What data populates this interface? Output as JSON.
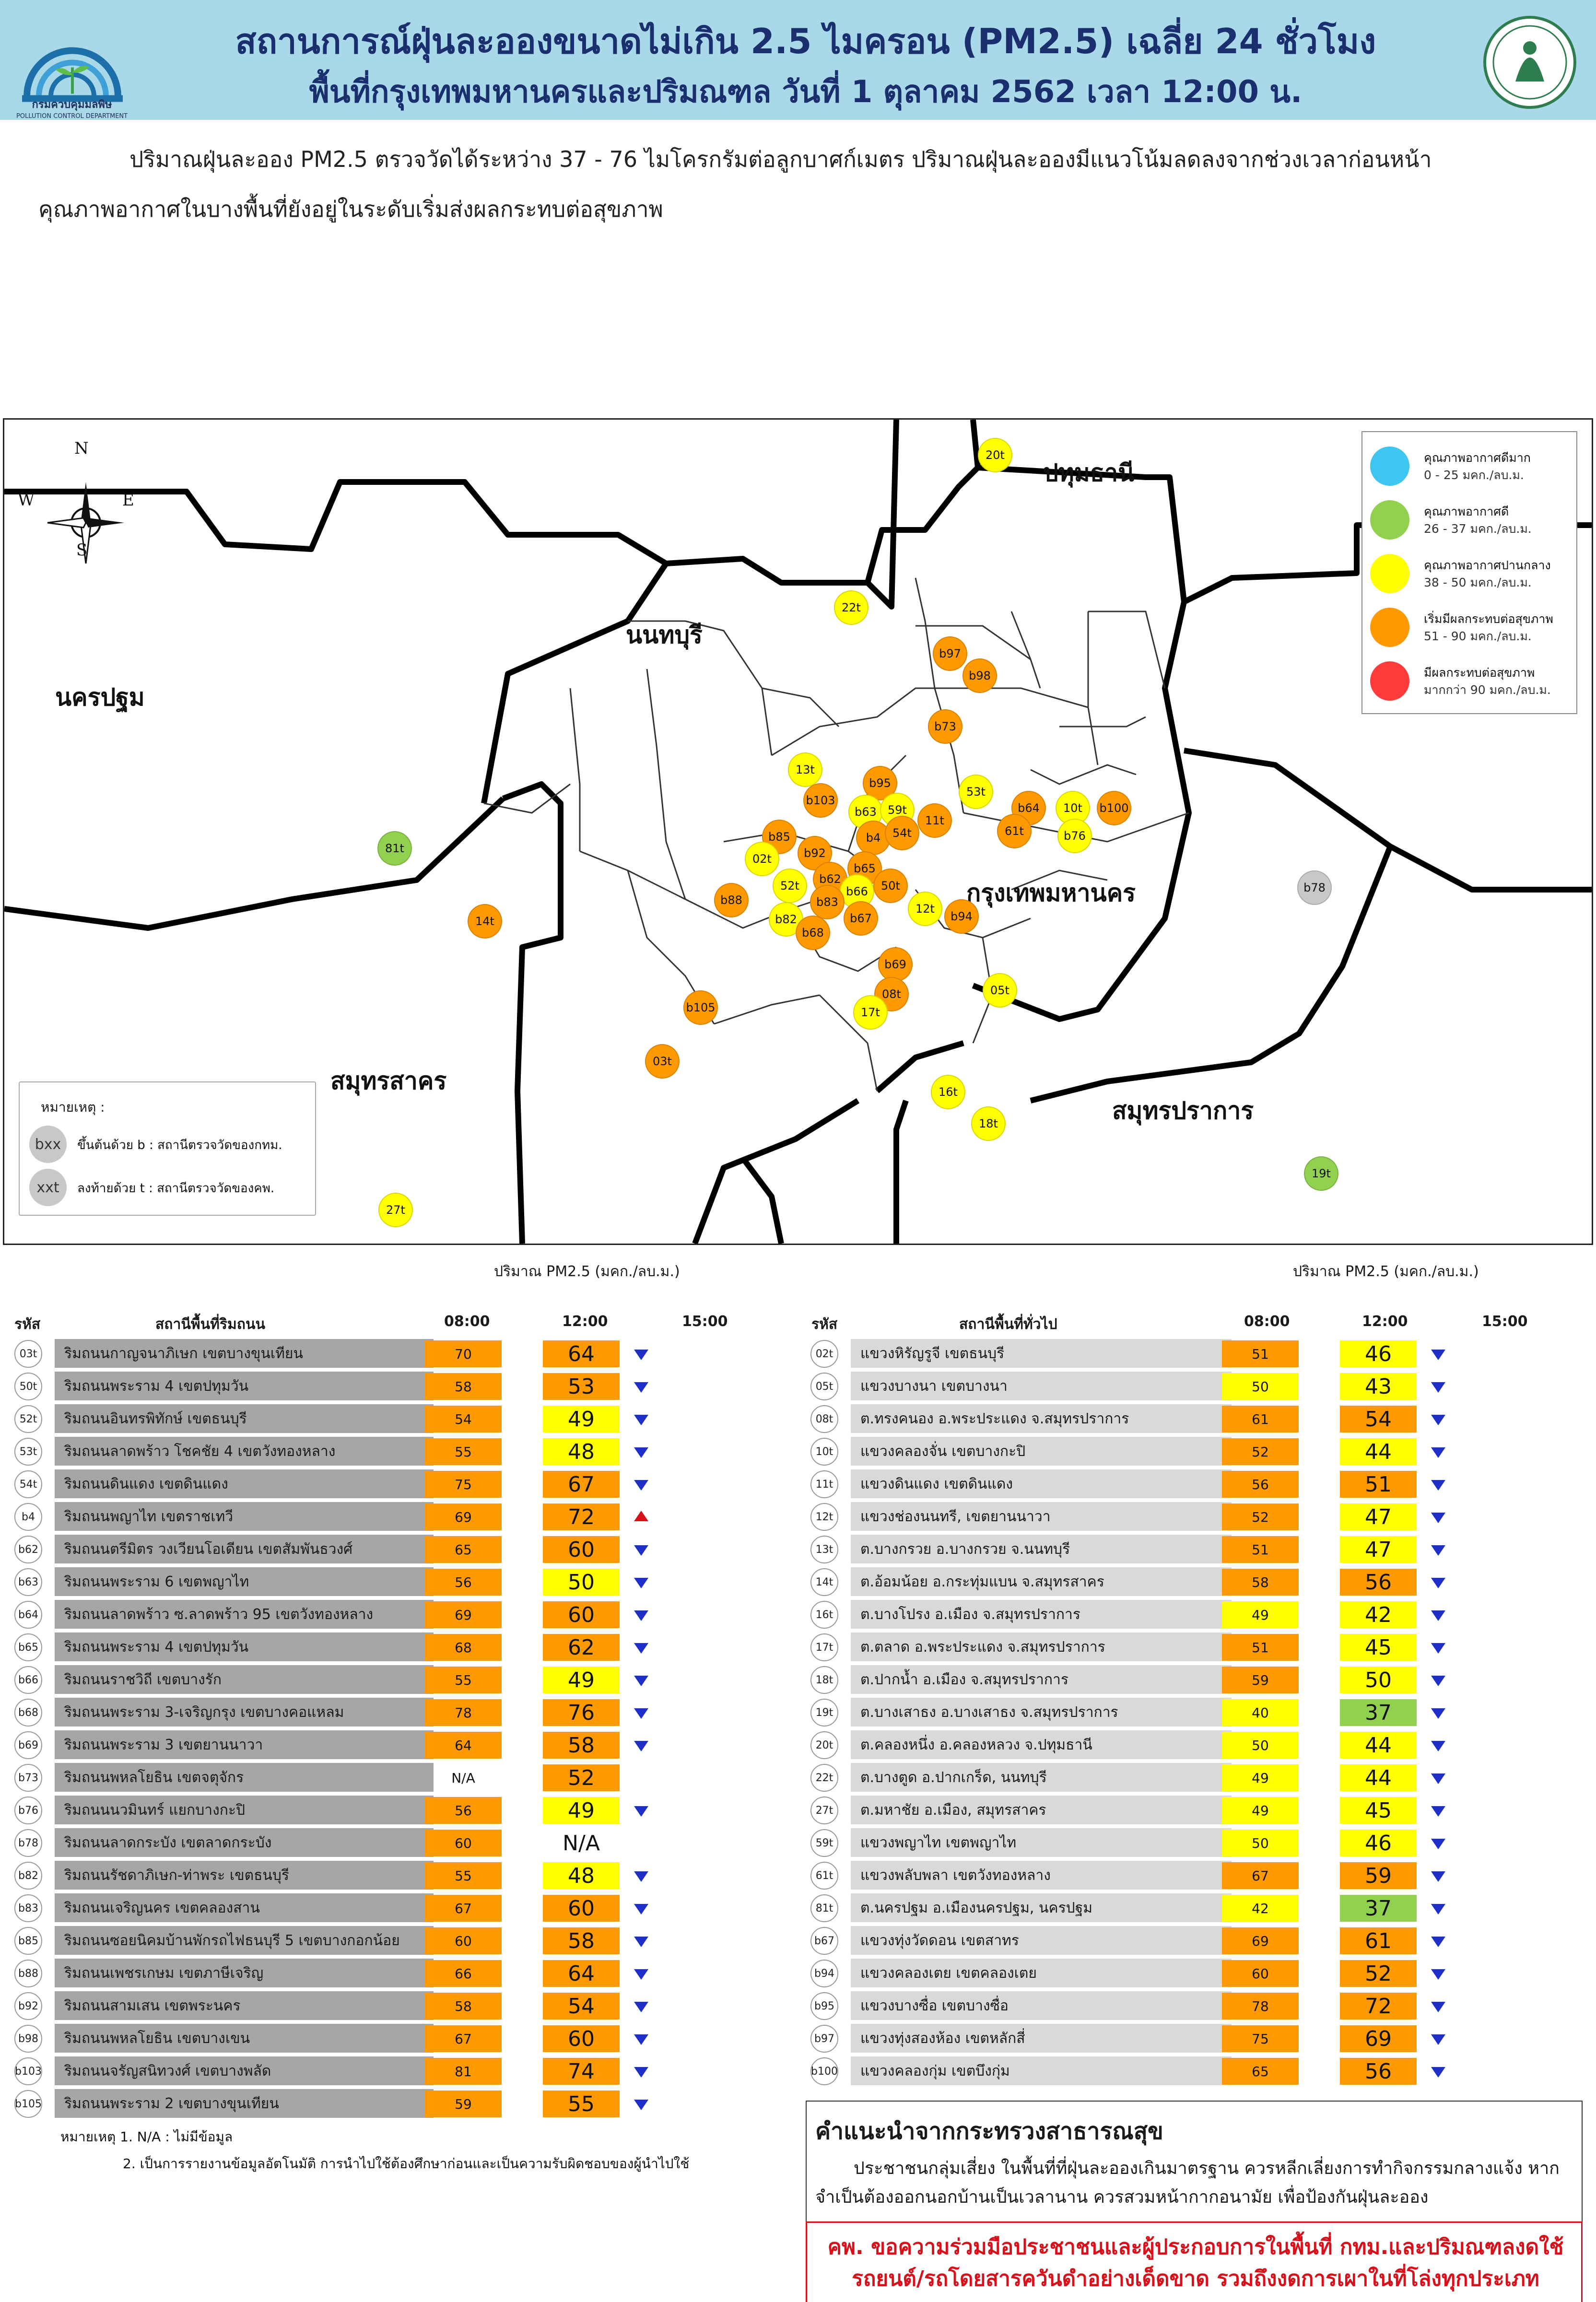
{
  "header": {
    "logo_text": "กรมควบคุมมลพิษ",
    "logo_subtext": "POLLUTION CONTROL DEPARTMENT",
    "title_line1": "สถานการณ์ฝุ่นละอองขนาดไม่เกิน 2.5 ไมครอน (PM2.5) เฉลี่ย 24 ชั่วโมง",
    "title_line2": "พื้นที่กรุงเทพมหานครและปริมณฑล วันที่ 1 ตุลาคม 2562 เวลา 12:00 น."
  },
  "summary": {
    "line1": "ปริมาณฝุ่นละออง PM2.5 ตรวจวัดได้ระหว่าง 37 - 76 ไมโครกรัมต่อลูกบาศก์เมตร  ปริมาณฝุ่นละอองมีแนวโน้มลดลงจากช่วงเวลาก่อนหน้า",
    "line2": "คุณภาพอากาศในบางพื้นที่ยังอยู่ในระดับเริ่มส่งผลกระทบต่อสุขภาพ"
  },
  "map": {
    "compass": {
      "n": "N",
      "s": "S",
      "e": "E",
      "w": "W"
    },
    "provinces": {
      "pathum": "ปทุมธานี",
      "nonthaburi": "นนทบุรี",
      "nakhonpathom": "นครปฐม",
      "bangkok": "กรุงเทพมหานคร",
      "samutsakhon": "สมุทรสาคร",
      "samutprakan": "สมุทรปราการ"
    },
    "legend": [
      {
        "label": "คุณภาพอากาศดีมาก",
        "range": "0 - 25 มคก./ลบ.ม.",
        "color": "#3fc6f0"
      },
      {
        "label": "คุณภาพอากาศดี",
        "range": "26 - 37 มคก./ลบ.ม.",
        "color": "#92d050"
      },
      {
        "label": "คุณภาพอากาศปานกลาง",
        "range": "38 - 50 มคก./ลบ.ม.",
        "color": "#ffff00"
      },
      {
        "label": "เริ่มมีผลกระทบต่อสุขภาพ",
        "range": "51 - 90 มคก./ลบ.ม.",
        "color": "#ff9900"
      },
      {
        "label": "มีผลกระทบต่อสุขภาพ",
        "range": "มากกว่า 90 มคก./ลบ.ม.",
        "color": "#ff3b3b"
      }
    ],
    "note": {
      "title": "หมายเหตุ :",
      "b_symbol": "bxx",
      "b_text": "ขึ้นต้นด้วย b : สถานีตรวจวัดของกทม.",
      "t_symbol": "xxt",
      "t_text": "ลงท้ายด้วย t : สถานีตรวจวัดของคพ."
    },
    "stations": [
      {
        "id": "20t",
        "color": "#ffff00"
      },
      {
        "id": "22t",
        "color": "#ffff00"
      },
      {
        "id": "b97",
        "color": "#ff9900"
      },
      {
        "id": "b98",
        "color": "#ff9900"
      },
      {
        "id": "b73",
        "color": "#ff9900"
      },
      {
        "id": "13t",
        "color": "#ffff00"
      },
      {
        "id": "b95",
        "color": "#ff9900"
      },
      {
        "id": "b103",
        "color": "#ff9900"
      },
      {
        "id": "53t",
        "color": "#ffff00"
      },
      {
        "id": "b63",
        "color": "#ffff00"
      },
      {
        "id": "59t",
        "color": "#ffff00"
      },
      {
        "id": "11t",
        "color": "#ff9900"
      },
      {
        "id": "b64",
        "color": "#ff9900"
      },
      {
        "id": "10t",
        "color": "#ffff00"
      },
      {
        "id": "b100",
        "color": "#ff9900"
      },
      {
        "id": "61t",
        "color": "#ff9900"
      },
      {
        "id": "b76",
        "color": "#ffff00"
      },
      {
        "id": "b85",
        "color": "#ff9900"
      },
      {
        "id": "b4",
        "color": "#ff9900"
      },
      {
        "id": "54t",
        "color": "#ff9900"
      },
      {
        "id": "81t",
        "color": "#92d050"
      },
      {
        "id": "02t",
        "color": "#ffff00"
      },
      {
        "id": "b92",
        "color": "#ff9900"
      },
      {
        "id": "b65",
        "color": "#ff9900"
      },
      {
        "id": "b62",
        "color": "#ff9900"
      },
      {
        "id": "52t",
        "color": "#ffff00"
      },
      {
        "id": "b66",
        "color": "#ffff00"
      },
      {
        "id": "50t",
        "color": "#ff9900"
      },
      {
        "id": "b88",
        "color": "#ff9900"
      },
      {
        "id": "b83",
        "color": "#ff9900"
      },
      {
        "id": "12t",
        "color": "#ffff00"
      },
      {
        "id": "b94",
        "color": "#ff9900"
      },
      {
        "id": "b78",
        "color": "#c8c8c8"
      },
      {
        "id": "14t",
        "color": "#ff9900"
      },
      {
        "id": "b82",
        "color": "#ffff00"
      },
      {
        "id": "b67",
        "color": "#ff9900"
      },
      {
        "id": "b68",
        "color": "#ff9900"
      },
      {
        "id": "b69",
        "color": "#ff9900"
      },
      {
        "id": "08t",
        "color": "#ff9900"
      },
      {
        "id": "b105",
        "color": "#ff9900"
      },
      {
        "id": "05t",
        "color": "#ffff00"
      },
      {
        "id": "17t",
        "color": "#ffff00"
      },
      {
        "id": "03t",
        "color": "#ff9900"
      },
      {
        "id": "16t",
        "color": "#ffff00"
      },
      {
        "id": "18t",
        "color": "#ffff00"
      },
      {
        "id": "19t",
        "color": "#92d050"
      },
      {
        "id": "27t",
        "color": "#ffff00"
      }
    ]
  },
  "tables": {
    "caption": "ปริมาณ PM2.5 (มคก./ลบ.ม.)",
    "col_code": "รหัส",
    "col_time1": "08:00",
    "col_time2": "12:00",
    "col_time3": "15:00",
    "left_title": "สถานีพื้นที่ริมถนน",
    "right_title": "สถานีพื้นที่ทั่วไป",
    "left_rows": [
      {
        "code": "03t",
        "name": "ริมถนนกาญจนาภิเษก เขตบางขุนเทียน",
        "v8": "70",
        "v12": "64",
        "trend": "down"
      },
      {
        "code": "50t",
        "name": "ริมถนนพระราม 4 เขตปทุมวัน",
        "v8": "58",
        "v12": "53",
        "trend": "down"
      },
      {
        "code": "52t",
        "name": "ริมถนนอินทรพิทักษ์ เขตธนบุรี",
        "v8": "54",
        "v12": "49",
        "trend": "down"
      },
      {
        "code": "53t",
        "name": "ริมถนนลาดพร้าว โชคชัย 4 เขตวังทองหลาง",
        "v8": "55",
        "v12": "48",
        "trend": "down"
      },
      {
        "code": "54t",
        "name": "ริมถนนดินแดง เขตดินแดง",
        "v8": "75",
        "v12": "67",
        "trend": "down"
      },
      {
        "code": "b4",
        "name": "ริมถนนพญาไท เขตราชเทวี",
        "v8": "69",
        "v12": "72",
        "trend": "up"
      },
      {
        "code": "b62",
        "name": "ริมถนนตรีมิตร วงเวียนโอเดียน เขตสัมพันธวงศ์",
        "v8": "65",
        "v12": "60",
        "trend": "down"
      },
      {
        "code": "b63",
        "name": "ริมถนนพระราม 6 เขตพญาไท",
        "v8": "56",
        "v12": "50",
        "trend": "down"
      },
      {
        "code": "b64",
        "name": "ริมถนนลาดพร้าว ซ.ลาดพร้าว 95 เขตวังทองหลาง",
        "v8": "69",
        "v12": "60",
        "trend": "down"
      },
      {
        "code": "b65",
        "name": "ริมถนนพระราม 4 เขตปทุมวัน",
        "v8": "68",
        "v12": "62",
        "trend": "down"
      },
      {
        "code": "b66",
        "name": "ริมถนนราชวิถี เขตบางรัก",
        "v8": "55",
        "v12": "49",
        "trend": "down"
      },
      {
        "code": "b68",
        "name": "ริมถนนพระราม 3-เจริญกรุง เขตบางคอแหลม",
        "v8": "78",
        "v12": "76",
        "trend": "down"
      },
      {
        "code": "b69",
        "name": "ริมถนนพระราม 3 เขตยานนาวา",
        "v8": "64",
        "v12": "58",
        "trend": "down"
      },
      {
        "code": "b73",
        "name": "ริมถนนพหลโยธิน เขตจตุจักร",
        "v8": "N/A",
        "v12": "52",
        "trend": "none"
      },
      {
        "code": "b76",
        "name": "ริมถนนนวมินทร์ แยกบางกะปิ",
        "v8": "56",
        "v12": "49",
        "trend": "down"
      },
      {
        "code": "b78",
        "name": "ริมถนนลาดกระบัง เขตลาดกระบัง",
        "v8": "60",
        "v12": "N/A",
        "trend": "none"
      },
      {
        "code": "b82",
        "name": "ริมถนนรัชดาภิเษก-ท่าพระ เขตธนบุรี",
        "v8": "55",
        "v12": "48",
        "trend": "down"
      },
      {
        "code": "b83",
        "name": "ริมถนนเจริญนคร เขตคลองสาน",
        "v8": "67",
        "v12": "60",
        "trend": "down"
      },
      {
        "code": "b85",
        "name": "ริมถนนซอยนิคมบ้านพักรถไฟธนบุรี 5 เขตบางกอกน้อย",
        "v8": "60",
        "v12": "58",
        "trend": "down"
      },
      {
        "code": "b88",
        "name": "ริมถนนเพชรเกษม เขตภาษีเจริญ",
        "v8": "66",
        "v12": "64",
        "trend": "down"
      },
      {
        "code": "b92",
        "name": "ริมถนนสามเสน เขตพระนคร",
        "v8": "58",
        "v12": "54",
        "trend": "down"
      },
      {
        "code": "b98",
        "name": "ริมถนนพหลโยธิน เขตบางเขน",
        "v8": "67",
        "v12": "60",
        "trend": "down"
      },
      {
        "code": "b103",
        "name": "ริมถนนจรัญสนิทวงศ์ เขตบางพลัด",
        "v8": "81",
        "v12": "74",
        "trend": "down"
      },
      {
        "code": "b105",
        "name": "ริมถนนพระราม 2 เขตบางขุนเทียน",
        "v8": "59",
        "v12": "55",
        "trend": "down"
      }
    ],
    "right_rows": [
      {
        "code": "02t",
        "name": "แขวงหิรัญรูจี เขตธนบุรี",
        "v8": "51",
        "v12": "46",
        "trend": "down"
      },
      {
        "code": "05t",
        "name": "แขวงบางนา เขตบางนา",
        "v8": "50",
        "v12": "43",
        "trend": "down"
      },
      {
        "code": "08t",
        "name": "ต.ทรงคนอง อ.พระประแดง จ.สมุทรปราการ",
        "v8": "61",
        "v12": "54",
        "trend": "down"
      },
      {
        "code": "10t",
        "name": "แขวงคลองจั่น เขตบางกะปิ",
        "v8": "52",
        "v12": "44",
        "trend": "down"
      },
      {
        "code": "11t",
        "name": "แขวงดินแดง เขตดินแดง",
        "v8": "56",
        "v12": "51",
        "trend": "down"
      },
      {
        "code": "12t",
        "name": "แขวงช่องนนทรี, เขตยานนาวา",
        "v8": "52",
        "v12": "47",
        "trend": "down"
      },
      {
        "code": "13t",
        "name": "ต.บางกรวย อ.บางกรวย จ.นนทบุรี",
        "v8": "51",
        "v12": "47",
        "trend": "down"
      },
      {
        "code": "14t",
        "name": "ต.อ้อมน้อย อ.กระทุ่มแบน จ.สมุทรสาคร",
        "v8": "58",
        "v12": "56",
        "trend": "down"
      },
      {
        "code": "16t",
        "name": "ต.บางโปรง อ.เมือง จ.สมุทรปราการ",
        "v8": "49",
        "v12": "42",
        "trend": "down"
      },
      {
        "code": "17t",
        "name": "ต.ตลาด อ.พระประแดง จ.สมุทรปราการ",
        "v8": "51",
        "v12": "45",
        "trend": "down"
      },
      {
        "code": "18t",
        "name": "ต.ปากน้ำ อ.เมือง จ.สมุทรปราการ",
        "v8": "59",
        "v12": "50",
        "trend": "down"
      },
      {
        "code": "19t",
        "name": "ต.บางเสาธง อ.บางเสาธง จ.สมุทรปราการ",
        "v8": "40",
        "v12": "37",
        "trend": "down"
      },
      {
        "code": "20t",
        "name": "ต.คลองหนึ่ง อ.คลองหลวง จ.ปทุมธานี",
        "v8": "50",
        "v12": "44",
        "trend": "down"
      },
      {
        "code": "22t",
        "name": "ต.บางตูด อ.ปากเกร็ด, นนทบุรี",
        "v8": "49",
        "v12": "44",
        "trend": "down"
      },
      {
        "code": "27t",
        "name": "ต.มหาชัย อ.เมือง, สมุทรสาคร",
        "v8": "49",
        "v12": "45",
        "trend": "down"
      },
      {
        "code": "59t",
        "name": "แขวงพญาไท เขตพญาไท",
        "v8": "50",
        "v12": "46",
        "trend": "down"
      },
      {
        "code": "61t",
        "name": "แขวงพลับพลา เขตวังทองหลาง",
        "v8": "67",
        "v12": "59",
        "trend": "down"
      },
      {
        "code": "81t",
        "name": "ต.นครปฐม อ.เมืองนครปฐม, นครปฐม",
        "v8": "42",
        "v12": "37",
        "trend": "down"
      },
      {
        "code": "b67",
        "name": "แขวงทุ่งวัดดอน เขตสาทร",
        "v8": "69",
        "v12": "61",
        "trend": "down"
      },
      {
        "code": "b94",
        "name": "แขวงคลองเตย เขตคลองเตย",
        "v8": "60",
        "v12": "52",
        "trend": "down"
      },
      {
        "code": "b95",
        "name": "แขวงบางซื่อ เขตบางซื่อ",
        "v8": "78",
        "v12": "72",
        "trend": "down"
      },
      {
        "code": "b97",
        "name": "แขวงทุ่งสองห้อง เขตหลักสี่",
        "v8": "75",
        "v12": "69",
        "trend": "down"
      },
      {
        "code": "b100",
        "name": "แขวงคลองกุ่ม เขตบึงกุ่ม",
        "v8": "65",
        "v12": "56",
        "trend": "down"
      }
    ],
    "footnote1": "หมายเหตุ 1. N/A : ไม่มีข้อมูล",
    "footnote2": "2. เป็นการรายงานข้อมูลอัตโนมัติ การนำไปใช้ต้องศึกษาก่อนและเป็นความรับผิดชอบของผู้นำไปใช้"
  },
  "advice": {
    "title": "คำแนะนำจากกระทรวงสาธารณสุข",
    "body": "ประชาชนกลุ่มเสี่ยง ในพื้นที่ที่ฝุ่นละอองเกินมาตรฐาน ควรหลีกเลี่ยงการทำกิจกรรมกลางแจ้ง หากจำเป็นต้องออกนอกบ้านเป็นเวลานาน ควรสวมหน้ากากอนามัย เพื่อป้องกันฝุ่นละออง",
    "appeal": "คพ. ขอความร่วมมือประชาชนและผู้ประกอบการในพื้นที่ กทม.และปริมณฑลงดใช้ รถยนต์/รถโดยสารควันดำอย่างเด็ดขาด รวมถึงงดการเผาในที่โล่งทุกประเภท"
  },
  "colors": {
    "orange": "#ff9900",
    "yellow": "#ffff00",
    "green": "#92d050",
    "name_left_bg": "#a6a6a6",
    "name_right_bg": "#d9d9d9",
    "trend_down": "#1e2ec8",
    "trend_up": "#d9101a"
  }
}
